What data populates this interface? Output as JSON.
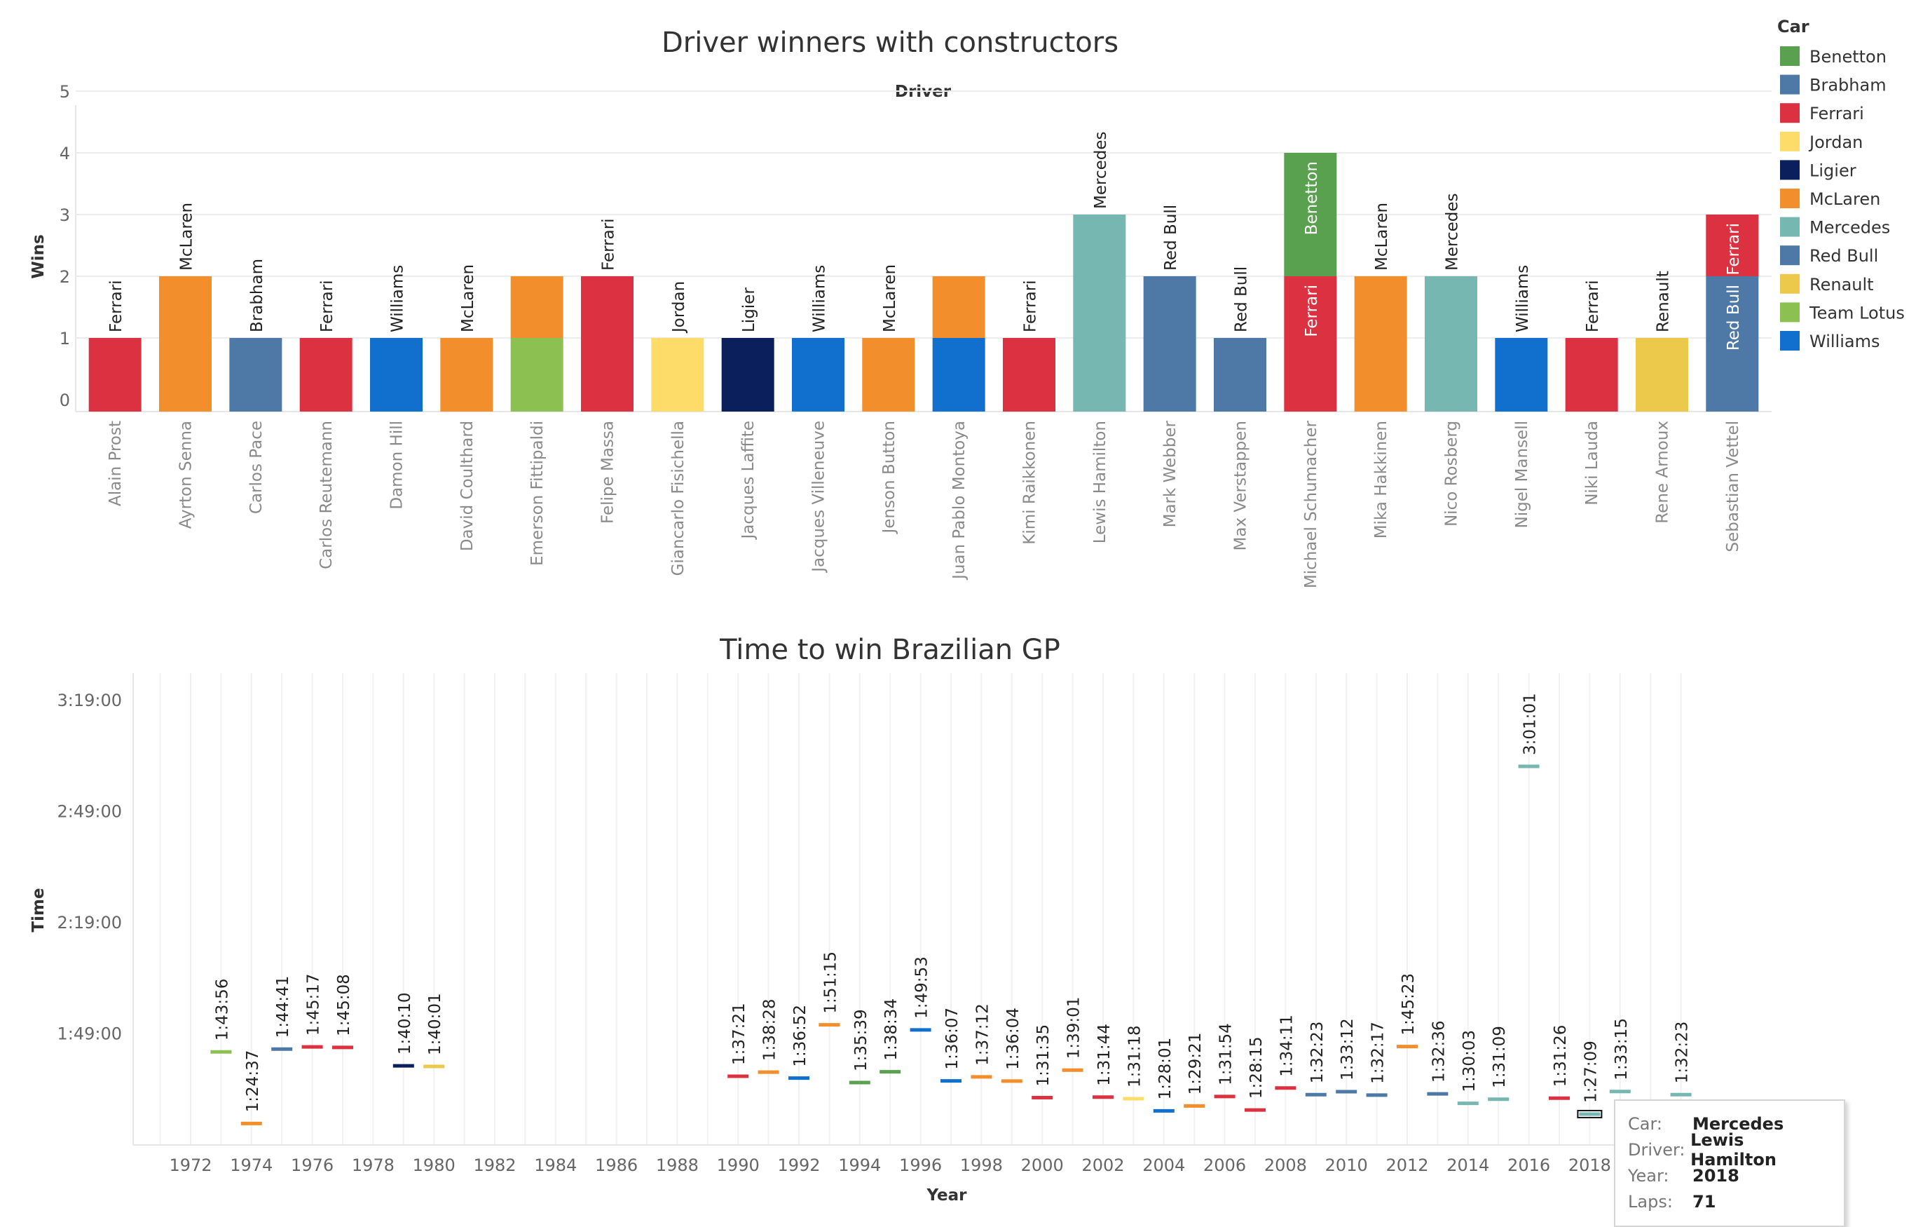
{
  "colors": {
    "Benetton": "#59a14f",
    "Brabham": "#4e79a7",
    "Ferrari": "#dc3140",
    "Jordan": "#fddc69",
    "Ligier": "#0b1f5c",
    "McLaren": "#f28e2b",
    "Mercedes": "#76b7b2",
    "Red Bull": "#4e79a7",
    "Renault": "#ecc94b",
    "Team Lotus": "#8cc152",
    "Williams": "#1170cd"
  },
  "legend": {
    "title": "Car",
    "items": [
      "Benetton",
      "Brabham",
      "Ferrari",
      "Jordan",
      "Ligier",
      "McLaren",
      "Mercedes",
      "Red Bull",
      "Renault",
      "Team Lotus",
      "Williams"
    ]
  },
  "tooltip": {
    "car_key": "Car:",
    "car_value": "Mercedes",
    "driver_key": "Driver:",
    "driver_value": "Lewis Hamilton",
    "year_key": "Year:",
    "year_value": "2018",
    "laps_key": "Laps:",
    "laps_value": "71"
  },
  "chart_data": [
    {
      "type": "bar",
      "stacked": true,
      "title": "Driver winners with constructors",
      "column_header": "Driver",
      "ylabel": "Wins",
      "ylim": [
        0,
        5
      ],
      "yticks": [
        0,
        1,
        2,
        3,
        4,
        5
      ],
      "categories": [
        "Alain Prost",
        "Ayrton Senna",
        "Carlos Pace",
        "Carlos Reutemann",
        "Damon Hill",
        "David Coulthard",
        "Emerson Fittipaldi",
        "Felipe Massa",
        "Giancarlo Fisichella",
        "Jacques Laffite",
        "Jacques Villeneuve",
        "Jenson Button",
        "Juan Pablo Montoya",
        "Kimi Raikkonen",
        "Lewis Hamilton",
        "Mark Webber",
        "Max Verstappen",
        "Michael Schumacher",
        "Mika Hakkinen",
        "Nico Rosberg",
        "Nigel Mansell",
        "Niki Lauda",
        "Rene Arnoux",
        "Sebastian Vettel"
      ],
      "stacks": [
        [
          {
            "car": "Ferrari",
            "wins": 1,
            "label": "Ferrari"
          }
        ],
        [
          {
            "car": "McLaren",
            "wins": 2,
            "label": "McLaren"
          }
        ],
        [
          {
            "car": "Brabham",
            "wins": 1,
            "label": "Brabham"
          }
        ],
        [
          {
            "car": "Ferrari",
            "wins": 1,
            "label": "Ferrari"
          }
        ],
        [
          {
            "car": "Williams",
            "wins": 1,
            "label": "Williams"
          }
        ],
        [
          {
            "car": "McLaren",
            "wins": 1,
            "label": "McLaren"
          }
        ],
        [
          {
            "car": "Team Lotus",
            "wins": 1,
            "label": ""
          },
          {
            "car": "McLaren",
            "wins": 1,
            "label": ""
          }
        ],
        [
          {
            "car": "Ferrari",
            "wins": 2,
            "label": "Ferrari"
          }
        ],
        [
          {
            "car": "Jordan",
            "wins": 1,
            "label": "Jordan"
          }
        ],
        [
          {
            "car": "Ligier",
            "wins": 1,
            "label": "Ligier"
          }
        ],
        [
          {
            "car": "Williams",
            "wins": 1,
            "label": "Williams"
          }
        ],
        [
          {
            "car": "McLaren",
            "wins": 1,
            "label": "McLaren"
          }
        ],
        [
          {
            "car": "Williams",
            "wins": 1,
            "label": ""
          },
          {
            "car": "McLaren",
            "wins": 1,
            "label": ""
          }
        ],
        [
          {
            "car": "Ferrari",
            "wins": 1,
            "label": "Ferrari"
          }
        ],
        [
          {
            "car": "Mercedes",
            "wins": 3,
            "label": "Mercedes"
          }
        ],
        [
          {
            "car": "Red Bull",
            "wins": 2,
            "label": "Red Bull"
          }
        ],
        [
          {
            "car": "Red Bull",
            "wins": 1,
            "label": "Red Bull"
          }
        ],
        [
          {
            "car": "Ferrari",
            "wins": 2,
            "label": "Ferrari"
          },
          {
            "car": "Benetton",
            "wins": 2,
            "label": "Benetton"
          }
        ],
        [
          {
            "car": "McLaren",
            "wins": 2,
            "label": "McLaren"
          }
        ],
        [
          {
            "car": "Mercedes",
            "wins": 2,
            "label": "Mercedes"
          }
        ],
        [
          {
            "car": "Williams",
            "wins": 1,
            "label": "Williams"
          }
        ],
        [
          {
            "car": "Ferrari",
            "wins": 1,
            "label": "Ferrari"
          }
        ],
        [
          {
            "car": "Renault",
            "wins": 1,
            "label": "Renault"
          }
        ],
        [
          {
            "car": "Red Bull",
            "wins": 2,
            "label": "Red Bull"
          },
          {
            "car": "Ferrari",
            "wins": 1,
            "label": "Ferrari"
          }
        ]
      ],
      "grid": true
    },
    {
      "type": "scatter",
      "mark": "dash",
      "title": "Time to win Brazilian GP",
      "xlabel": "Year",
      "ylabel": "Time",
      "xlim": [
        1970,
        2022
      ],
      "xticks": [
        1972,
        1974,
        1976,
        1978,
        1980,
        1982,
        1984,
        1986,
        1988,
        1990,
        1992,
        1994,
        1996,
        1998,
        2000,
        2002,
        2004,
        2006,
        2008,
        2010,
        2012,
        2014,
        2016,
        2018
      ],
      "ylim": [
        "1:19:00",
        "3:19:00"
      ],
      "yticks": [
        "1:49:00",
        "2:19:00",
        "2:49:00",
        "3:19:00"
      ],
      "points": [
        {
          "year": 1973,
          "time": "1:43:56",
          "car": "Team Lotus"
        },
        {
          "year": 1974,
          "time": "1:24:37",
          "car": "McLaren"
        },
        {
          "year": 1975,
          "time": "1:44:41",
          "car": "Brabham"
        },
        {
          "year": 1976,
          "time": "1:45:17",
          "car": "Ferrari"
        },
        {
          "year": 1977,
          "time": "1:45:08",
          "car": "Ferrari"
        },
        {
          "year": 1979,
          "time": "1:40:10",
          "car": "Ligier"
        },
        {
          "year": 1980,
          "time": "1:40:01",
          "car": "Renault"
        },
        {
          "year": 1990,
          "time": "1:37:21",
          "car": "Ferrari"
        },
        {
          "year": 1991,
          "time": "1:38:28",
          "car": "McLaren"
        },
        {
          "year": 1992,
          "time": "1:36:52",
          "car": "Williams"
        },
        {
          "year": 1993,
          "time": "1:51:15",
          "car": "McLaren"
        },
        {
          "year": 1994,
          "time": "1:35:39",
          "car": "Benetton"
        },
        {
          "year": 1995,
          "time": "1:38:34",
          "car": "Benetton"
        },
        {
          "year": 1996,
          "time": "1:49:53",
          "car": "Williams"
        },
        {
          "year": 1997,
          "time": "1:36:07",
          "car": "Williams"
        },
        {
          "year": 1998,
          "time": "1:37:12",
          "car": "McLaren"
        },
        {
          "year": 1999,
          "time": "1:36:04",
          "car": "McLaren"
        },
        {
          "year": 2000,
          "time": "1:31:35",
          "car": "Ferrari"
        },
        {
          "year": 2001,
          "time": "1:39:01",
          "car": "McLaren"
        },
        {
          "year": 2002,
          "time": "1:31:44",
          "car": "Ferrari"
        },
        {
          "year": 2003,
          "time": "1:31:18",
          "car": "Jordan"
        },
        {
          "year": 2004,
          "time": "1:28:01",
          "car": "Williams"
        },
        {
          "year": 2005,
          "time": "1:29:21",
          "car": "McLaren"
        },
        {
          "year": 2006,
          "time": "1:31:54",
          "car": "Ferrari"
        },
        {
          "year": 2007,
          "time": "1:28:15",
          "car": "Ferrari"
        },
        {
          "year": 2008,
          "time": "1:34:11",
          "car": "Ferrari"
        },
        {
          "year": 2009,
          "time": "1:32:23",
          "car": "Brabham"
        },
        {
          "year": 2010,
          "time": "1:33:12",
          "car": "Red Bull"
        },
        {
          "year": 2011,
          "time": "1:32:17",
          "car": "Red Bull"
        },
        {
          "year": 2012,
          "time": "1:45:23",
          "car": "McLaren"
        },
        {
          "year": 2013,
          "time": "1:32:36",
          "car": "Red Bull"
        },
        {
          "year": 2014,
          "time": "1:30:03",
          "car": "Mercedes"
        },
        {
          "year": 2015,
          "time": "1:31:09",
          "car": "Mercedes"
        },
        {
          "year": 2016,
          "time": "3:01:01",
          "car": "Mercedes"
        },
        {
          "year": 2017,
          "time": "1:31:26",
          "car": "Ferrari"
        },
        {
          "year": 2018,
          "time": "1:27:09",
          "car": "Mercedes",
          "selected": true
        },
        {
          "year": 2019,
          "time": "1:33:15",
          "car": "Mercedes"
        },
        {
          "year": 2021,
          "time": "1:32:23",
          "car": "Mercedes"
        }
      ],
      "grid": true
    }
  ]
}
